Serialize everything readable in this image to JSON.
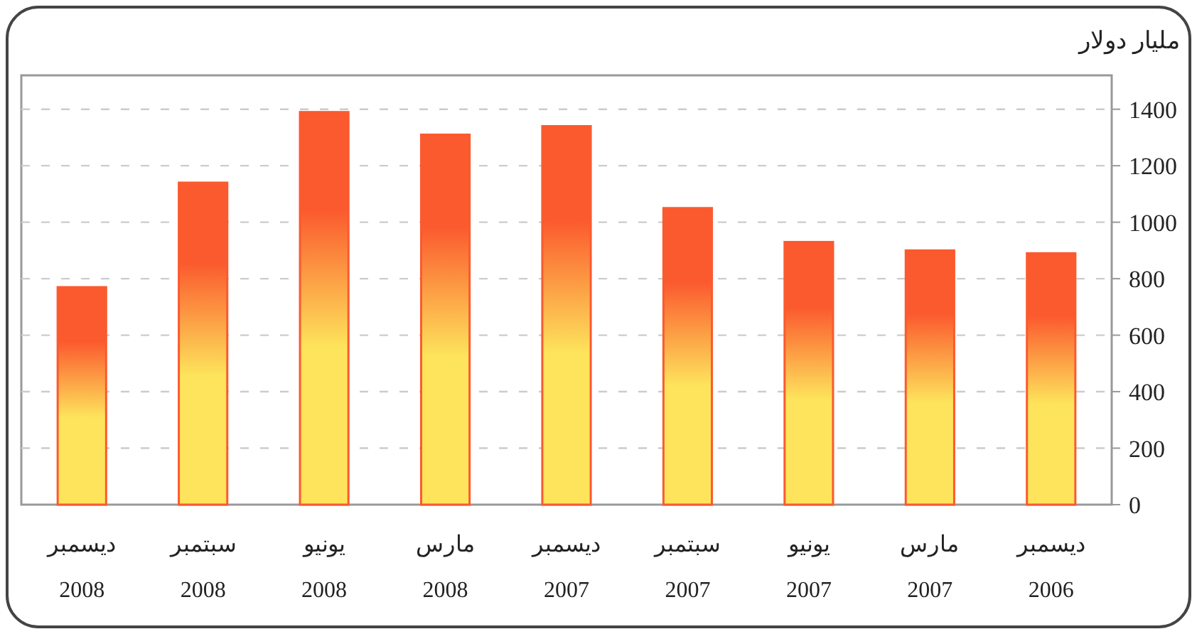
{
  "chart_data": {
    "type": "bar",
    "ylabel": "مليار دولار",
    "categories": [
      "ديسمبر\n2008",
      "سبتمبر\n2008",
      "يونيو\n2008",
      "مارس\n2008",
      "ديسمبر\n2007",
      "سبتمبر\n2007",
      "يونيو\n2007",
      "مارس\n2007",
      "ديسمبر\n2006"
    ],
    "values": [
      770,
      1140,
      1390,
      1310,
      1340,
      1050,
      930,
      900,
      890
    ],
    "color": "#fb5a2e",
    "ylim": [
      0,
      1520
    ],
    "yticks": [
      0,
      200,
      400,
      600,
      800,
      1000,
      1200,
      1400
    ],
    "grid": "y"
  }
}
